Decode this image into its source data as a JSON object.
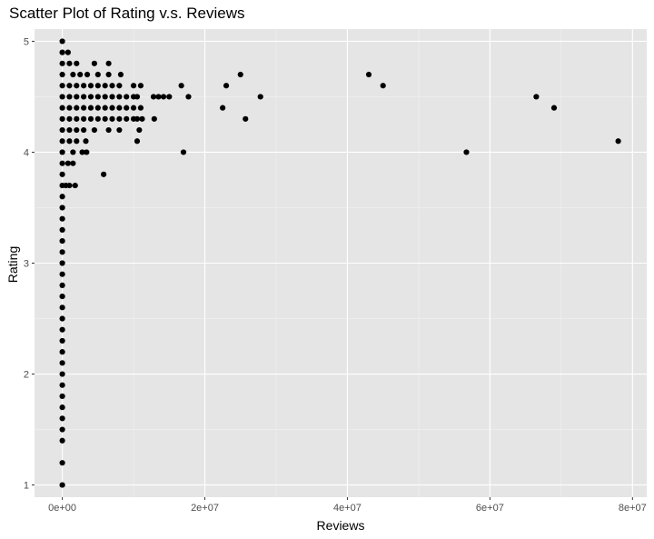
{
  "chart_data": {
    "type": "scatter",
    "title": "Scatter Plot of Rating v.s. Reviews",
    "xlabel": "Reviews",
    "ylabel": "Rating",
    "xlim": [
      -3900000,
      82000000
    ],
    "ylim": [
      0.89,
      5.11
    ],
    "x_ticks": [
      0,
      20000000,
      40000000,
      60000000,
      80000000
    ],
    "x_tick_labels": [
      "0e+00",
      "2e+07",
      "4e+07",
      "6e+07",
      "8e+07"
    ],
    "y_ticks": [
      1,
      2,
      3,
      4,
      5
    ],
    "y_tick_labels": [
      "1",
      "2",
      "3",
      "4",
      "5"
    ],
    "grid": true,
    "colors": {
      "panel": "#e5e5e5",
      "grid_major": "#ffffff",
      "grid_minor": "#f2f2f2",
      "point": "#000000"
    },
    "points": [
      [
        0,
        5.0
      ],
      [
        0,
        4.9
      ],
      [
        0,
        4.8
      ],
      [
        0,
        4.7
      ],
      [
        0,
        4.6
      ],
      [
        0,
        4.5
      ],
      [
        0,
        4.4
      ],
      [
        0,
        4.3
      ],
      [
        0,
        4.2
      ],
      [
        0,
        4.1
      ],
      [
        0,
        4.0
      ],
      [
        0,
        3.9
      ],
      [
        0,
        3.8
      ],
      [
        0,
        3.7
      ],
      [
        0,
        3.6
      ],
      [
        0,
        3.5
      ],
      [
        0,
        3.4
      ],
      [
        0,
        3.3
      ],
      [
        0,
        3.2
      ],
      [
        0,
        3.1
      ],
      [
        0,
        3.0
      ],
      [
        0,
        2.9
      ],
      [
        0,
        2.8
      ],
      [
        0,
        2.7
      ],
      [
        0,
        2.6
      ],
      [
        0,
        2.5
      ],
      [
        0,
        2.4
      ],
      [
        0,
        2.3
      ],
      [
        0,
        2.2
      ],
      [
        0,
        2.1
      ],
      [
        0,
        2.0
      ],
      [
        0,
        1.9
      ],
      [
        0,
        1.8
      ],
      [
        0,
        1.7
      ],
      [
        0,
        1.6
      ],
      [
        0,
        1.5
      ],
      [
        0,
        1.4
      ],
      [
        0,
        1.2
      ],
      [
        0,
        1.0
      ],
      [
        800000,
        4.9
      ],
      [
        1000000,
        4.8
      ],
      [
        2000000,
        4.8
      ],
      [
        4500000,
        4.8
      ],
      [
        6500000,
        4.8
      ],
      [
        1500000,
        4.7
      ],
      [
        2500000,
        4.7
      ],
      [
        3500000,
        4.7
      ],
      [
        5000000,
        4.7
      ],
      [
        6500000,
        4.7
      ],
      [
        8200000,
        4.7
      ],
      [
        25000000,
        4.7
      ],
      [
        43000000,
        4.7
      ],
      [
        1000000,
        4.6
      ],
      [
        2000000,
        4.6
      ],
      [
        3000000,
        4.6
      ],
      [
        4000000,
        4.6
      ],
      [
        5000000,
        4.6
      ],
      [
        6000000,
        4.6
      ],
      [
        7000000,
        4.6
      ],
      [
        8000000,
        4.6
      ],
      [
        10000000,
        4.6
      ],
      [
        11000000,
        4.6
      ],
      [
        16700000,
        4.6
      ],
      [
        23000000,
        4.6
      ],
      [
        45000000,
        4.6
      ],
      [
        1000000,
        4.5
      ],
      [
        2000000,
        4.5
      ],
      [
        3000000,
        4.5
      ],
      [
        4000000,
        4.5
      ],
      [
        5000000,
        4.5
      ],
      [
        6000000,
        4.5
      ],
      [
        7000000,
        4.5
      ],
      [
        8000000,
        4.5
      ],
      [
        9000000,
        4.5
      ],
      [
        10000000,
        4.5
      ],
      [
        10500000,
        4.5
      ],
      [
        12800000,
        4.5
      ],
      [
        13500000,
        4.5
      ],
      [
        14200000,
        4.5
      ],
      [
        15000000,
        4.5
      ],
      [
        17700000,
        4.5
      ],
      [
        27800000,
        4.5
      ],
      [
        66500000,
        4.5
      ],
      [
        1000000,
        4.4
      ],
      [
        2000000,
        4.4
      ],
      [
        3000000,
        4.4
      ],
      [
        4000000,
        4.4
      ],
      [
        5000000,
        4.4
      ],
      [
        6000000,
        4.4
      ],
      [
        7000000,
        4.4
      ],
      [
        8000000,
        4.4
      ],
      [
        9000000,
        4.4
      ],
      [
        10000000,
        4.4
      ],
      [
        11000000,
        4.4
      ],
      [
        22500000,
        4.4
      ],
      [
        69000000,
        4.4
      ],
      [
        1000000,
        4.3
      ],
      [
        2000000,
        4.3
      ],
      [
        3000000,
        4.3
      ],
      [
        4000000,
        4.3
      ],
      [
        5000000,
        4.3
      ],
      [
        6000000,
        4.3
      ],
      [
        7000000,
        4.3
      ],
      [
        8000000,
        4.3
      ],
      [
        9000000,
        4.3
      ],
      [
        10000000,
        4.3
      ],
      [
        10500000,
        4.3
      ],
      [
        11200000,
        4.3
      ],
      [
        12900000,
        4.3
      ],
      [
        25700000,
        4.3
      ],
      [
        1000000,
        4.2
      ],
      [
        2000000,
        4.2
      ],
      [
        3000000,
        4.2
      ],
      [
        4500000,
        4.2
      ],
      [
        6500000,
        4.2
      ],
      [
        8000000,
        4.2
      ],
      [
        10800000,
        4.2
      ],
      [
        1000000,
        4.1
      ],
      [
        2000000,
        4.1
      ],
      [
        3300000,
        4.1
      ],
      [
        10500000,
        4.1
      ],
      [
        78000000,
        4.1
      ],
      [
        1500000,
        4.0
      ],
      [
        2800000,
        4.0
      ],
      [
        3400000,
        4.0
      ],
      [
        17000000,
        4.0
      ],
      [
        56700000,
        4.0
      ],
      [
        800000,
        3.9
      ],
      [
        1500000,
        3.9
      ],
      [
        5800000,
        3.8
      ],
      [
        500000,
        3.7
      ],
      [
        1000000,
        3.7
      ],
      [
        1800000,
        3.7
      ]
    ]
  }
}
